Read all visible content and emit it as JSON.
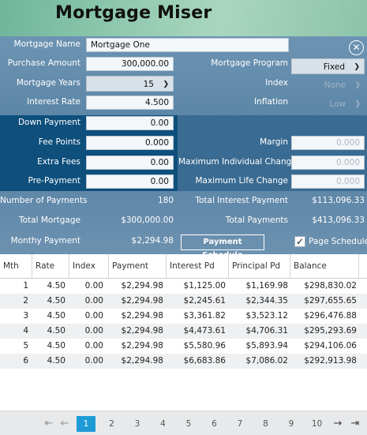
{
  "app": {
    "title": "Mortgage Miser"
  },
  "form": {
    "mortgage_name": {
      "label": "Mortgage Name",
      "value": "Mortgage One"
    },
    "purchase_amount": {
      "label": "Purchase Amount",
      "value": "300,000.00"
    },
    "mortgage_years": {
      "label": "Mortgage Years",
      "value": "15"
    },
    "interest_rate": {
      "label": "Interest Rate",
      "value": "4.500"
    },
    "down_payment": {
      "label": "Down Payment",
      "value": "0.00"
    },
    "fee_points": {
      "label": "Fee Points",
      "value": "0.000"
    },
    "extra_fees": {
      "label": "Extra Fees",
      "value": "0.00"
    },
    "pre_payment": {
      "label": "Pre-Payment",
      "value": "0.00"
    },
    "mortgage_program": {
      "label": "Mortgage Program",
      "value": "Fixed"
    },
    "index": {
      "label": "Index",
      "value": "None"
    },
    "inflation": {
      "label": "Inflation",
      "value": "Low"
    },
    "margin": {
      "label": "Margin",
      "value": "0.000"
    },
    "max_individual_change": {
      "label": "Maximum Individual Change",
      "value": "0.000"
    },
    "max_life_change": {
      "label": "Maximum Life Change",
      "value": "0.000"
    }
  },
  "summary": {
    "number_of_payments": {
      "label": "Number of Payments",
      "value": "180"
    },
    "total_mortgage": {
      "label": "Total Mortgage",
      "value": "$300,000.00"
    },
    "monthly_payment": {
      "label": "Monthy Payment",
      "value": "$2,294.98"
    },
    "total_interest_payment": {
      "label": "Total Interest Payment",
      "value": "$113,096.33"
    },
    "total_payments": {
      "label": "Total Payments",
      "value": "$413,096.33"
    },
    "payment_schedule_button": "Payment Schedule",
    "page_schedule_label": "Page Schedule",
    "page_schedule_checked": true
  },
  "grid": {
    "columns": [
      "Mth",
      "Rate",
      "Index",
      "Payment",
      "Interest Pd",
      "Principal Pd",
      "Balance"
    ],
    "rows": [
      [
        "1",
        "4.50",
        "0.00",
        "$2,294.98",
        "$1,125.00",
        "$1,169.98",
        "$298,830.02"
      ],
      [
        "2",
        "4.50",
        "0.00",
        "$2,294.98",
        "$2,245.61",
        "$2,344.35",
        "$297,655.65"
      ],
      [
        "3",
        "4.50",
        "0.00",
        "$2,294.98",
        "$3,361.82",
        "$3,523.12",
        "$296,476.88"
      ],
      [
        "4",
        "4.50",
        "0.00",
        "$2,294.98",
        "$4,473.61",
        "$4,706.31",
        "$295,293.69"
      ],
      [
        "5",
        "4.50",
        "0.00",
        "$2,294.98",
        "$5,580.96",
        "$5,893.94",
        "$294,106.06"
      ],
      [
        "6",
        "4.50",
        "0.00",
        "$2,294.98",
        "$6,683.86",
        "$7,086.02",
        "$292,913.98"
      ]
    ]
  },
  "pager": {
    "pages": [
      "1",
      "2",
      "3",
      "4",
      "5",
      "6",
      "7",
      "8",
      "9",
      "10"
    ],
    "current": "1",
    "first": "⇤",
    "prev": "←",
    "next": "→",
    "last": "⇥"
  },
  "icons": {
    "close": "close-circle-icon",
    "chevron": "chevron-down-icon",
    "check": "check-icon"
  },
  "colors": {
    "accent": "#1e9bd6",
    "panel": "#0e4f7c"
  }
}
